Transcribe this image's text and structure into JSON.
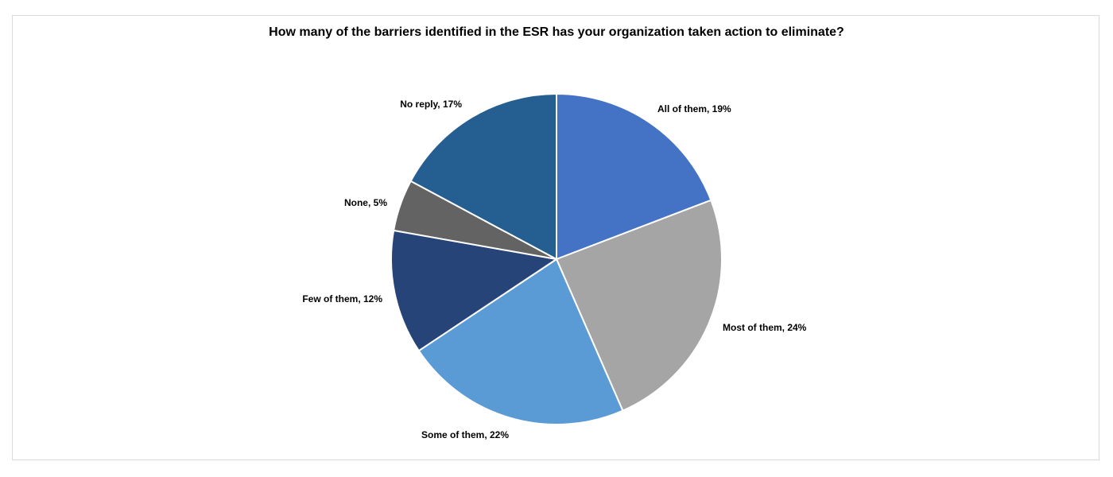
{
  "chart_data": {
    "type": "pie",
    "title": "How many of the barriers identified in the ESR has your organization taken action to eliminate?",
    "slices": [
      {
        "label": "All of them",
        "value": 19,
        "display": "All of them, 19%",
        "color": "#4472c4"
      },
      {
        "label": "Most of them",
        "value": 24,
        "display": "Most of them, 24%",
        "color": "#a5a5a5"
      },
      {
        "label": "Some of them",
        "value": 22,
        "display": "Some of them, 22%",
        "color": "#5b9bd5"
      },
      {
        "label": "Few of them",
        "value": 12,
        "display": "Few of them, 12%",
        "color": "#264478"
      },
      {
        "label": "None",
        "value": 5,
        "display": "None, 5%",
        "color": "#636363"
      },
      {
        "label": "No reply",
        "value": 17,
        "display": "No reply, 17%",
        "color": "#255e91"
      }
    ],
    "start": "12 o'clock",
    "direction": "clockwise",
    "legend": "none",
    "data_labels": "outside"
  }
}
